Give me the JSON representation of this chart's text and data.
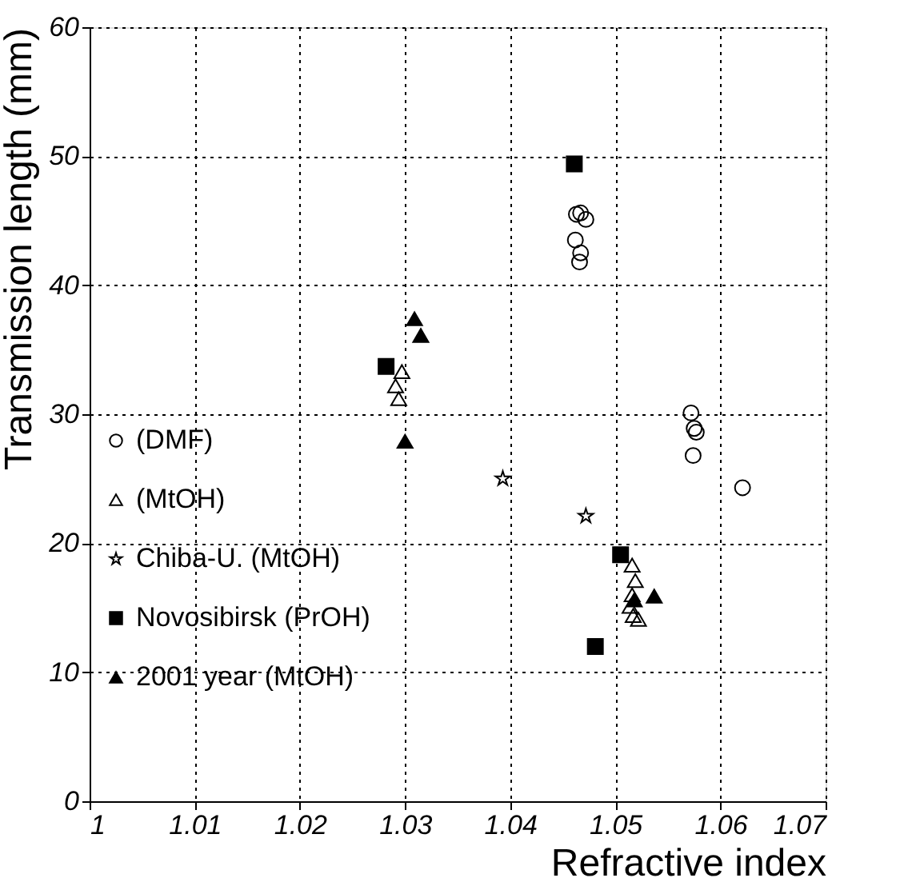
{
  "chart_data": {
    "type": "scatter",
    "xlabel": "Refractive index",
    "ylabel": "Transmission length (mm)",
    "xlim": [
      1,
      1.07
    ],
    "xticks": [
      1,
      1.01,
      1.02,
      1.03,
      1.04,
      1.05,
      1.06,
      1.07
    ],
    "ylim": [
      0,
      60
    ],
    "yticks": [
      0,
      10,
      20,
      30,
      40,
      50,
      60
    ],
    "grid": true,
    "legend": "left",
    "series": [
      {
        "name": "(DMF)",
        "color": "#000000",
        "marker": "circle",
        "x": [
          1.0463,
          1.0467,
          1.0472,
          1.0462,
          1.0467,
          1.0466,
          1.0572,
          1.0575,
          1.0577,
          1.0574,
          1.0621
        ],
        "values": [
          45.5,
          45.6,
          45.1,
          43.5,
          42.5,
          41.8,
          30.1,
          28.9,
          28.6,
          26.8,
          24.3
        ]
      },
      {
        "name": "(MtOH)",
        "color": "#000000",
        "marker": "triangle",
        "x": [
          1.0297,
          1.0291,
          1.0294,
          1.0516,
          1.0519,
          1.0516,
          1.0514,
          1.0517,
          1.0522
        ],
        "values": [
          33.3,
          32.2,
          31.2,
          18.3,
          17.1,
          16.0,
          15.1,
          14.4,
          14.1
        ]
      },
      {
        "name": "Chiba-U. (MtOH)",
        "color": "#000000",
        "marker": "star",
        "x": [
          1.0393,
          1.0472
        ],
        "values": [
          25.0,
          22.1
        ]
      },
      {
        "name": "Novosibirsk (PrOH)",
        "color": "#000000",
        "marker": "square",
        "x": [
          1.0282,
          1.0461,
          1.0505,
          1.0481
        ],
        "values": [
          33.7,
          49.4,
          19.1,
          12.0
        ]
      },
      {
        "name": "2001 year (MtOH)",
        "color": "#000000",
        "marker": "triangle",
        "x": [
          1.0309,
          1.0315,
          1.03,
          1.0518,
          1.0537
        ],
        "values": [
          37.4,
          36.1,
          27.9,
          15.6,
          15.9
        ]
      }
    ]
  }
}
